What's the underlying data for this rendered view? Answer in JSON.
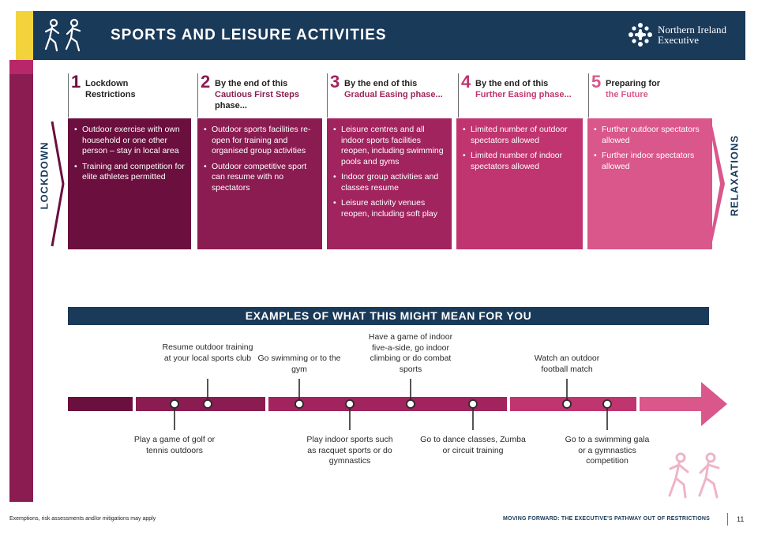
{
  "header": {
    "title": "SPORTS AND LEISURE ACTIVITIES",
    "logo_line1": "Northern Ireland",
    "logo_line2": "Executive"
  },
  "side_labels": {
    "left": "LOCKDOWN",
    "right": "RELAXATIONS"
  },
  "phases": [
    {
      "number": "1",
      "title_lines": [
        "Lockdown",
        "Restrictions"
      ],
      "color": "#6b0f3e",
      "bullets": [
        "Outdoor exercise with own household or one other person – stay in local area",
        "Training and competition for elite athletes permitted"
      ]
    },
    {
      "number": "2",
      "title_lines": [
        "By the end of this",
        "Cautious First Steps",
        "phase..."
      ],
      "color": "#8a1c52",
      "bullets": [
        "Outdoor sports facilities re-open for training and organised group activities",
        "Outdoor competitive sport can resume with no spectators"
      ]
    },
    {
      "number": "3",
      "title_lines": [
        "By the end of this",
        "Gradual Easing phase..."
      ],
      "color": "#a1245f",
      "bullets": [
        "Leisure centres and all indoor sports facilities reopen, including swimming pools and gyms",
        "Indoor group activities and classes resume",
        "Leisure activity venues reopen, including soft play"
      ]
    },
    {
      "number": "4",
      "title_lines": [
        "By the end of this",
        "Further Easing phase..."
      ],
      "color": "#c0346f",
      "bullets": [
        "Limited number of outdoor spectators allowed",
        "Limited number of indoor spectators allowed"
      ]
    },
    {
      "number": "5",
      "title_lines": [
        "Preparing for",
        "the Future"
      ],
      "color": "#d9578a",
      "bullets": [
        "Further outdoor spectators allowed",
        "Further indoor spectators allowed"
      ]
    }
  ],
  "examples": {
    "title": "EXAMPLES OF WHAT THIS MIGHT MEAN FOR YOU",
    "above": [
      "Resume outdoor training at your local sports club",
      "Go swimming or to the gym",
      "Have a game of indoor five-a-side, go indoor climbing or do combat sports",
      "Watch an outdoor football match"
    ],
    "below": [
      "Play a game of golf or tennis outdoors",
      "Play indoor sports such as racquet sports or do gymnastics",
      "Go to dance classes, Zumba or circuit training",
      "Go to a swimming gala or a gymnastics competition"
    ]
  },
  "footer": {
    "left": "Exemptions, risk assessments and/or mitigations may apply",
    "right": "MOVING FORWARD: THE EXECUTIVE'S PATHWAY OUT OF RESTRICTIONS",
    "page": "11"
  }
}
